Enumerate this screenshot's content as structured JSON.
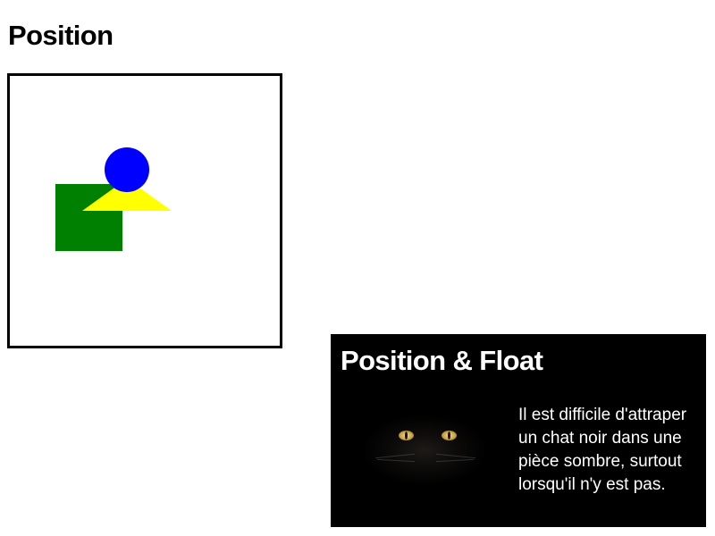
{
  "section_position": {
    "title": "Position"
  },
  "shapes": {
    "square_color": "#008000",
    "triangle_color": "#ffff00",
    "circle_color": "#0000ff"
  },
  "section_position_float": {
    "title": "Position & Float",
    "image_icon": "black-cat-eyes-image",
    "paragraph": "Il est difficile d'attraper un chat noir dans une pièce sombre, surtout lorsqu'il n'y est pas."
  }
}
